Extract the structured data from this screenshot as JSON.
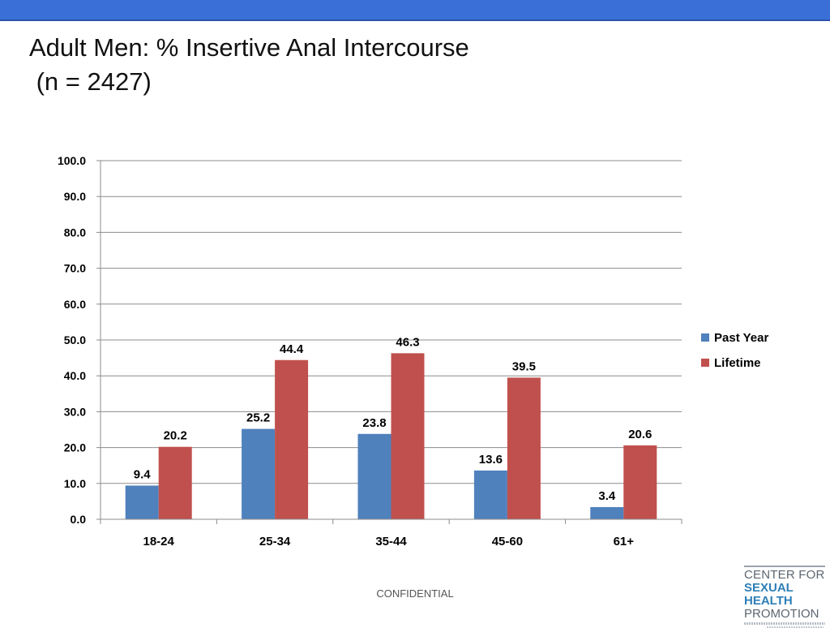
{
  "slide": {
    "title_line1": "Adult Men: % Insertive Anal Intercourse",
    "title_line2": " (n = 2427)",
    "footer": "CONFIDENTIAL"
  },
  "logo": {
    "line1": "CENTER FOR",
    "line2": "SEXUAL HEALTH",
    "line3": "PROMOTION"
  },
  "colors": {
    "top_bar": "#3a6fd8",
    "past_year": "#4f81bd",
    "lifetime": "#c0504d"
  },
  "chart_data": {
    "type": "bar",
    "categories": [
      "18-24",
      "25-34",
      "35-44",
      "45-60",
      "61+"
    ],
    "series": [
      {
        "name": "Past Year",
        "values": [
          9.4,
          25.2,
          23.8,
          13.6,
          3.4
        ],
        "labels": [
          "9.4",
          "25.2",
          "23.8",
          "13.6",
          "3.4"
        ],
        "color": "#4f81bd"
      },
      {
        "name": "Lifetime",
        "values": [
          20.2,
          44.4,
          46.3,
          39.5,
          20.6
        ],
        "labels": [
          "20.2",
          "44.4",
          "46.3",
          "39.5",
          "20.6"
        ],
        "color": "#c0504d"
      }
    ],
    "ylim": [
      0,
      100
    ],
    "yticks": [
      0,
      10,
      20,
      30,
      40,
      50,
      60,
      70,
      80,
      90,
      100
    ],
    "ytick_labels": [
      "0.0",
      "10.0",
      "20.0",
      "30.0",
      "40.0",
      "50.0",
      "60.0",
      "70.0",
      "80.0",
      "90.0",
      "100.0"
    ],
    "grid": true,
    "legend": "right",
    "title": "",
    "xlabel": "",
    "ylabel": ""
  }
}
